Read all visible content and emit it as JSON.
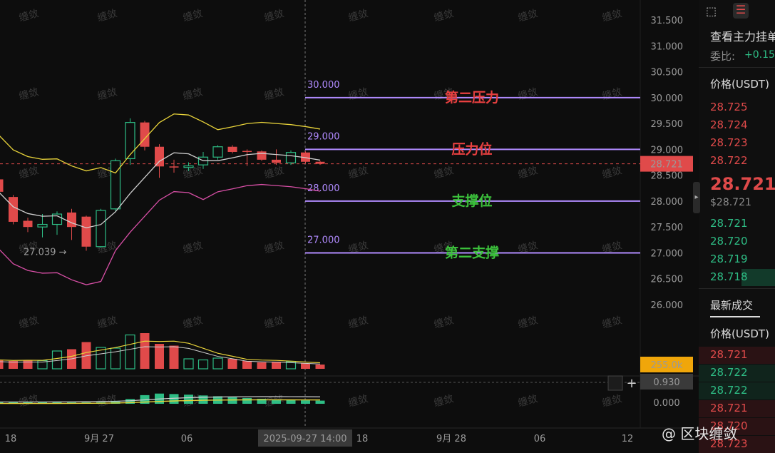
{
  "chart_data": {
    "type": "candlestick",
    "y_axis": {
      "ticks": [
        "31.500",
        "31.000",
        "30.500",
        "30.000",
        "29.500",
        "29.000",
        "28.500",
        "28.000",
        "27.500",
        "27.000",
        "26.500",
        "26.000"
      ],
      "range": [
        25.6,
        31.7
      ]
    },
    "x_axis": {
      "ticks": [
        "18",
        "9月 27",
        "06",
        "18",
        "9月 28",
        "06",
        "12"
      ]
    },
    "crosshair_time": "2025-09-27 14:00",
    "last_price_tag": "28.721",
    "low_marker": "27.039",
    "candles": [
      {
        "o": 28.42,
        "h": 28.45,
        "l": 28.15,
        "c": 28.18
      },
      {
        "o": 28.08,
        "h": 28.12,
        "l": 27.55,
        "c": 27.6
      },
      {
        "o": 27.62,
        "h": 27.68,
        "l": 27.4,
        "c": 27.5
      },
      {
        "o": 27.5,
        "h": 27.75,
        "l": 27.3,
        "c": 27.55
      },
      {
        "o": 27.55,
        "h": 27.8,
        "l": 27.35,
        "c": 27.75
      },
      {
        "o": 27.78,
        "h": 27.85,
        "l": 27.25,
        "c": 27.5
      },
      {
        "o": 27.7,
        "h": 27.72,
        "l": 27.04,
        "c": 27.12
      },
      {
        "o": 27.12,
        "h": 27.85,
        "l": 27.1,
        "c": 27.82
      },
      {
        "o": 27.85,
        "h": 28.82,
        "l": 27.8,
        "c": 28.78
      },
      {
        "o": 28.82,
        "h": 29.6,
        "l": 28.7,
        "c": 29.52
      },
      {
        "o": 29.52,
        "h": 29.55,
        "l": 28.98,
        "c": 29.05
      },
      {
        "o": 29.05,
        "h": 29.1,
        "l": 28.45,
        "c": 28.67
      },
      {
        "o": 28.67,
        "h": 28.8,
        "l": 28.55,
        "c": 28.65
      },
      {
        "o": 28.65,
        "h": 28.75,
        "l": 28.58,
        "c": 28.68
      },
      {
        "o": 28.7,
        "h": 28.95,
        "l": 28.62,
        "c": 28.85
      },
      {
        "o": 28.85,
        "h": 29.08,
        "l": 28.8,
        "c": 29.05
      },
      {
        "o": 29.05,
        "h": 29.08,
        "l": 28.92,
        "c": 28.95
      },
      {
        "o": 28.97,
        "h": 29.0,
        "l": 28.68,
        "c": 28.96
      },
      {
        "o": 28.96,
        "h": 28.98,
        "l": 28.78,
        "c": 28.8
      },
      {
        "o": 28.8,
        "h": 29.0,
        "l": 28.7,
        "c": 28.74
      },
      {
        "o": 28.74,
        "h": 28.98,
        "l": 28.7,
        "c": 28.94
      },
      {
        "o": 28.94,
        "h": 28.96,
        "l": 28.72,
        "c": 28.76
      },
      {
        "o": 28.76,
        "h": 28.78,
        "l": 28.7,
        "c": 28.72
      }
    ],
    "levels": [
      {
        "price": 30.0,
        "label": "30.000",
        "zone": "第二压力",
        "color": "#e84040"
      },
      {
        "price": 29.0,
        "label": "29.000",
        "zone": "压力位",
        "color": "#e84040"
      },
      {
        "price": 28.0,
        "label": "28.000",
        "zone": "支撑位",
        "color": "#3cc23c"
      },
      {
        "price": 27.0,
        "label": "27.000",
        "zone": "第二支撑",
        "color": "#3cc23c"
      }
    ],
    "volume": {
      "tag": "255.0k",
      "bars": [
        0.25,
        0.22,
        0.25,
        0.23,
        0.5,
        0.55,
        0.75,
        0.6,
        0.58,
        0.95,
        1.0,
        0.7,
        0.65,
        0.28,
        0.25,
        0.3,
        0.28,
        0.22,
        0.18,
        0.2,
        0.2,
        0.15,
        0.12
      ]
    },
    "oscillator": {
      "ticks": [
        "0.930",
        "0.000"
      ],
      "bars": [
        0.02,
        0.02,
        0.02,
        0.02,
        0.03,
        0.06,
        0.07,
        0.1,
        0.15,
        0.3,
        0.55,
        0.65,
        0.62,
        0.58,
        0.53,
        0.48,
        0.42,
        0.37,
        0.32,
        0.28,
        0.24,
        0.22,
        0.2
      ]
    }
  },
  "sidebar": {
    "title": "查看主力挂单",
    "ratio_label": "委比:",
    "ratio_value": "+0.15%",
    "price_header": "价格(USDT)",
    "asks": [
      "28.725",
      "28.724",
      "28.723",
      "28.722"
    ],
    "last_price": "28.721",
    "last_price_usd": "$28.721",
    "bids": [
      "28.721",
      "28.720",
      "28.719",
      "28.718"
    ],
    "trades_title": "最新成交",
    "trades_header": "价格(USDT)",
    "trades": [
      {
        "price": "28.721",
        "side": "sell"
      },
      {
        "price": "28.722",
        "side": "buy"
      },
      {
        "price": "28.722",
        "side": "buy"
      },
      {
        "price": "28.721",
        "side": "sell"
      },
      {
        "price": "28.720",
        "side": "sell"
      },
      {
        "price": "28.723",
        "side": "sell"
      }
    ]
  },
  "watermark": "缠敛",
  "footer": {
    "text": "@ 区块缠敛"
  },
  "colors": {
    "up": "#2ebd85",
    "down": "#e04a4a",
    "level": "#b18bff",
    "volume_tag": "#f0a60a"
  }
}
